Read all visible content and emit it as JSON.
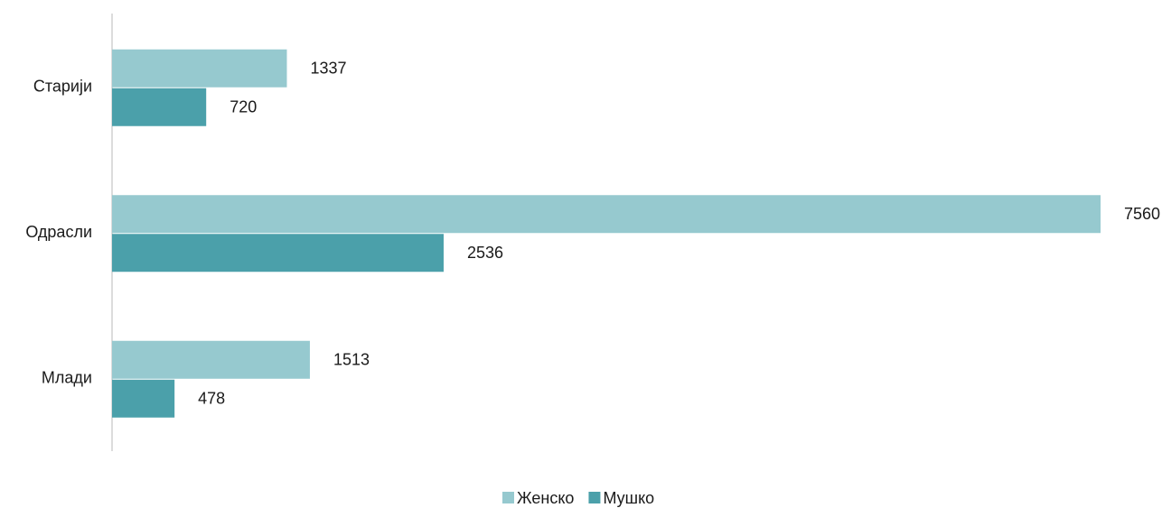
{
  "chart_data": {
    "type": "barh",
    "categories": [
      "Старији",
      "Одрасли",
      "Млади"
    ],
    "series": [
      {
        "name": "Женско",
        "color": "#96c9cf",
        "values": [
          1337,
          7560,
          1513
        ]
      },
      {
        "name": "Мушко",
        "color": "#4ba0aa",
        "values": [
          720,
          2536,
          478
        ]
      }
    ],
    "legend": "bottom"
  }
}
